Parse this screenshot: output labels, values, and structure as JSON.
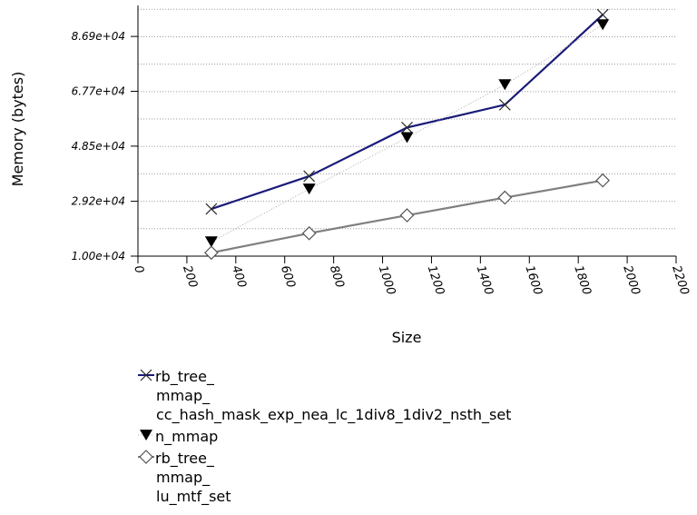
{
  "chart_data": {
    "type": "line",
    "title": "",
    "xlabel": "Size",
    "ylabel": "Memory (bytes)",
    "xlim": [
      0,
      2200
    ],
    "ylim": [
      10000,
      96480
    ],
    "x_ticks": [
      "0",
      "200",
      "400",
      "600",
      "800",
      "1000",
      "1200",
      "1400",
      "1600",
      "1800",
      "2000",
      "2200"
    ],
    "y_ticks": [
      {
        "value": 10000,
        "label": "1.00e+04"
      },
      {
        "value": 29200,
        "label": "2.92e+04"
      },
      {
        "value": 48500,
        "label": "4.85e+04"
      },
      {
        "value": 67700,
        "label": "6.77e+04"
      },
      {
        "value": 86900,
        "label": "8.69e+04"
      }
    ],
    "grid": true,
    "legend_position": "below",
    "series": [
      {
        "name_lines": [
          "rb_tree_",
          "mmap_",
          "cc_hash_mask_exp_nea_lc_1div8_1div2_nsth_set"
        ],
        "color": "#1a1a7a",
        "marker": "x",
        "line": "solid",
        "x": [
          300,
          700,
          1100,
          1500,
          1900
        ],
        "y": [
          26500,
          38000,
          55000,
          63000,
          94500
        ]
      },
      {
        "name_lines": [
          "n_mmap"
        ],
        "color": "#000000",
        "marker": "triangle-down",
        "line": "dotted",
        "x": [
          300,
          700,
          1100,
          1500,
          1900
        ],
        "y": [
          15000,
          33500,
          51500,
          70000,
          91000
        ]
      },
      {
        "name_lines": [
          "rb_tree_",
          "mmap_",
          "lu_mtf_set"
        ],
        "color": "#808080",
        "marker": "diamond",
        "line": "solid",
        "x": [
          300,
          700,
          1100,
          1500,
          1900
        ],
        "y": [
          11200,
          18000,
          24300,
          30500,
          36500
        ]
      }
    ]
  }
}
